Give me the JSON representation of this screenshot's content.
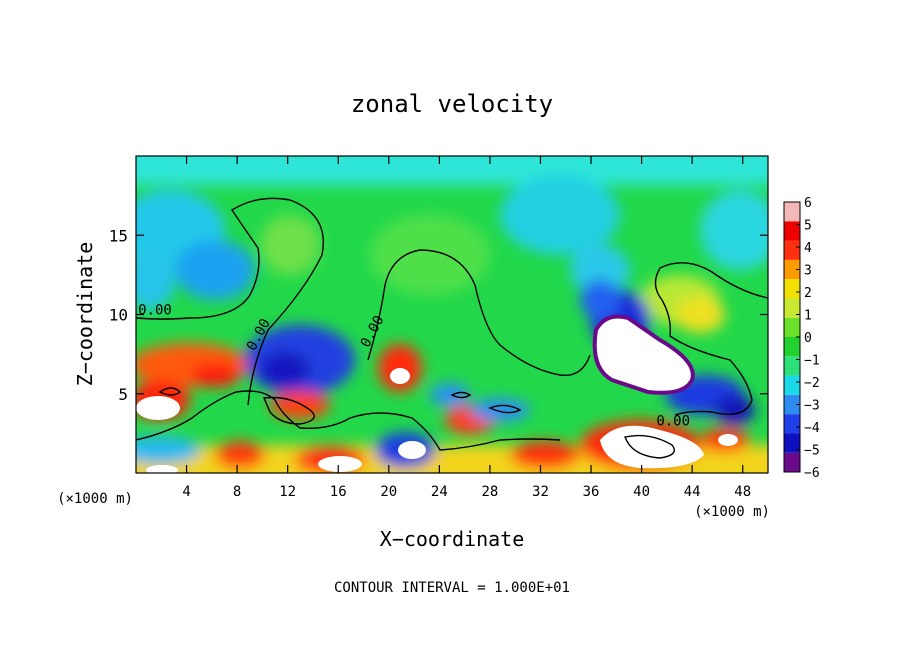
{
  "chart_data": {
    "type": "heatmap",
    "title": "zonal velocity",
    "xlabel": "X−coordinate",
    "ylabel": "Z−coordinate",
    "x_unit_left": "(×1000 m)",
    "x_unit_right": "(×1000 m)",
    "footer": "CONTOUR INTERVAL = 1.000E+01",
    "xlim": [
      0,
      50
    ],
    "ylim": [
      0,
      20
    ],
    "x_ticks": [
      4,
      8,
      12,
      16,
      20,
      24,
      28,
      32,
      36,
      40,
      44,
      48
    ],
    "y_ticks": [
      5,
      10,
      15
    ],
    "colorbar": {
      "min": -6,
      "max": 6,
      "ticks": [
        6,
        5,
        4,
        3,
        2,
        1,
        0,
        -1,
        -2,
        -3,
        -4,
        -5,
        -6
      ],
      "colors": [
        "#6a0a8a",
        "#1010c0",
        "#1f3fe8",
        "#2e8bf0",
        "#1ad9e8",
        "#2ee07a",
        "#22d030",
        "#6be02a",
        "#c8e832",
        "#f0e000",
        "#ff9a00",
        "#ff3010",
        "#ee0000",
        "#f4b8b8"
      ]
    },
    "contours": [
      {
        "label": "0.00",
        "x": 1.5,
        "y": 10.0
      },
      {
        "label": "0.00",
        "x": 10.0,
        "y": 8.6
      },
      {
        "label": "0.00",
        "x": 19.0,
        "y": 8.8
      },
      {
        "label": "0.00",
        "x": 42.5,
        "y": 3.0
      }
    ],
    "grid": false,
    "legend": "colorbar-right"
  }
}
